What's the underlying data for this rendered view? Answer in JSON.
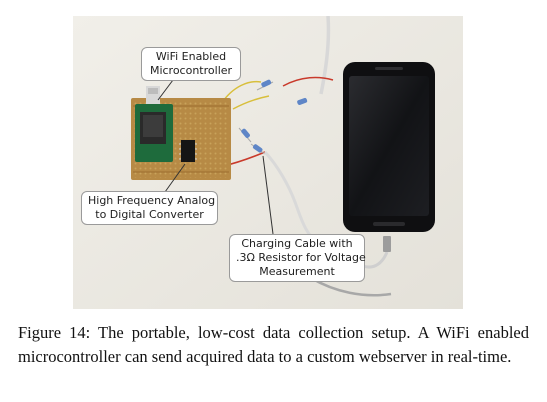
{
  "figure": {
    "callouts": {
      "wifi": [
        "WiFi Enabled",
        "Microcontroller"
      ],
      "adc": [
        "High Frequency Analog",
        "to Digital Converter"
      ],
      "cable": [
        "Charging Cable with",
        ".3Ω Resistor for Voltage",
        "Measurement"
      ]
    },
    "caption": "Figure 14: The portable, low-cost data collection setup. A WiFi enabled microcontroller can send acquired data to a custom webserver in real-time."
  }
}
